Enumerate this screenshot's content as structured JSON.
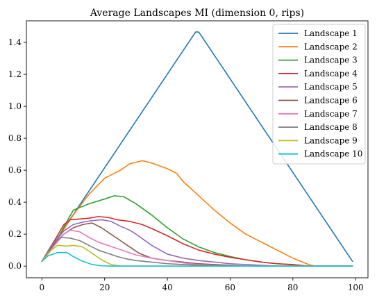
{
  "chart_data": {
    "type": "line",
    "title": "Average Landscapes MI (dimension 0, rips)",
    "xlabel": "",
    "ylabel": "",
    "xlim": [
      -4.95,
      103.95
    ],
    "ylim": [
      -0.073,
      1.535
    ],
    "xticks": [
      0,
      20,
      40,
      60,
      80,
      100
    ],
    "yticks": [
      0.0,
      0.2,
      0.4,
      0.6,
      0.8,
      1.0,
      1.2,
      1.4
    ],
    "xtick_labels": [
      "0",
      "20",
      "40",
      "60",
      "80",
      "100"
    ],
    "ytick_labels": [
      "0.0",
      "0.2",
      "0.4",
      "0.6",
      "0.8",
      "1.0",
      "1.2",
      "1.4"
    ],
    "grid": false,
    "legend_position": "top-right",
    "series": [
      {
        "name": "Landscape 1",
        "color": "#1f77b4",
        "x": [
          0,
          49,
          50,
          99
        ],
        "y": [
          0.03,
          1.465,
          1.465,
          0.03
        ]
      },
      {
        "name": "Landscape 2",
        "color": "#ff7f0e",
        "x": [
          0,
          5,
          10,
          15,
          20,
          22,
          25,
          28,
          32,
          35,
          40,
          43,
          45,
          50,
          55,
          60,
          65,
          70,
          75,
          80,
          85,
          87,
          90,
          99
        ],
        "y": [
          0.03,
          0.17,
          0.32,
          0.45,
          0.55,
          0.57,
          0.6,
          0.64,
          0.66,
          0.645,
          0.61,
          0.58,
          0.53,
          0.44,
          0.35,
          0.27,
          0.2,
          0.15,
          0.1,
          0.05,
          0.01,
          0.0,
          0.0,
          0.0
        ]
      },
      {
        "name": "Landscape 3",
        "color": "#2ca02c",
        "x": [
          0,
          5,
          8,
          10,
          15,
          20,
          23,
          26,
          30,
          35,
          40,
          45,
          50,
          55,
          60,
          65,
          70,
          75,
          80,
          85,
          90,
          99
        ],
        "y": [
          0.03,
          0.17,
          0.28,
          0.35,
          0.39,
          0.42,
          0.44,
          0.435,
          0.39,
          0.32,
          0.24,
          0.17,
          0.12,
          0.085,
          0.06,
          0.04,
          0.025,
          0.015,
          0.008,
          0.0,
          0.0,
          0.0
        ]
      },
      {
        "name": "Landscape 4",
        "color": "#d62728",
        "x": [
          0,
          4,
          7,
          9,
          12,
          15,
          18,
          21,
          24,
          28,
          32,
          35,
          40,
          45,
          50,
          55,
          60,
          65,
          70,
          75,
          80,
          85,
          90,
          99
        ],
        "y": [
          0.03,
          0.16,
          0.26,
          0.29,
          0.295,
          0.3,
          0.31,
          0.305,
          0.29,
          0.28,
          0.26,
          0.235,
          0.19,
          0.14,
          0.1,
          0.075,
          0.055,
          0.04,
          0.025,
          0.015,
          0.01,
          0.0,
          0.0,
          0.0
        ]
      },
      {
        "name": "Landscape 5",
        "color": "#9467bd",
        "x": [
          0,
          4,
          7,
          10,
          13,
          16,
          19,
          22,
          25,
          28,
          30,
          35,
          40,
          45,
          50,
          55,
          60,
          65,
          70,
          75,
          80,
          90,
          99
        ],
        "y": [
          0.03,
          0.15,
          0.22,
          0.26,
          0.275,
          0.285,
          0.29,
          0.28,
          0.25,
          0.225,
          0.2,
          0.13,
          0.075,
          0.05,
          0.035,
          0.025,
          0.015,
          0.01,
          0.005,
          0.0,
          0.0,
          0.0,
          0.0
        ]
      },
      {
        "name": "Landscape 6",
        "color": "#8c564b",
        "x": [
          0,
          4,
          7,
          10,
          13,
          16,
          19,
          22,
          25,
          28,
          31,
          35,
          40,
          45,
          50,
          55,
          60,
          65,
          70,
          80,
          90,
          99
        ],
        "y": [
          0.03,
          0.14,
          0.2,
          0.24,
          0.26,
          0.27,
          0.24,
          0.2,
          0.16,
          0.12,
          0.08,
          0.05,
          0.035,
          0.025,
          0.015,
          0.01,
          0.005,
          0.0,
          0.0,
          0.0,
          0.0,
          0.0
        ]
      },
      {
        "name": "Landscape 7",
        "color": "#e377c2",
        "x": [
          0,
          4,
          7,
          9,
          12,
          15,
          18,
          21,
          24,
          27,
          30,
          35,
          40,
          45,
          50,
          55,
          60,
          70,
          80,
          90,
          99
        ],
        "y": [
          0.03,
          0.13,
          0.2,
          0.225,
          0.215,
          0.18,
          0.15,
          0.13,
          0.11,
          0.09,
          0.07,
          0.05,
          0.035,
          0.02,
          0.01,
          0.005,
          0.0,
          0.0,
          0.0,
          0.0,
          0.0
        ]
      },
      {
        "name": "Landscape 8",
        "color": "#7f7f7f",
        "x": [
          0,
          3,
          6,
          9,
          12,
          15,
          18,
          21,
          24,
          27,
          30,
          35,
          40,
          45,
          50,
          60,
          70,
          80,
          90,
          99
        ],
        "y": [
          0.03,
          0.13,
          0.18,
          0.175,
          0.16,
          0.13,
          0.1,
          0.08,
          0.06,
          0.045,
          0.035,
          0.025,
          0.015,
          0.01,
          0.005,
          0.0,
          0.0,
          0.0,
          0.0,
          0.0
        ]
      },
      {
        "name": "Landscape 9",
        "color": "#bcbd22",
        "x": [
          0,
          3,
          5,
          8,
          10,
          13,
          16,
          19,
          22,
          25,
          28,
          35,
          50,
          70,
          99
        ],
        "y": [
          0.03,
          0.1,
          0.13,
          0.125,
          0.13,
          0.12,
          0.08,
          0.04,
          0.01,
          0.0,
          0.0,
          0.0,
          0.0,
          0.0,
          0.0
        ]
      },
      {
        "name": "Landscape 10",
        "color": "#17becf",
        "x": [
          0,
          2,
          5,
          8,
          10,
          13,
          16,
          19,
          22,
          25,
          30,
          50,
          70,
          99
        ],
        "y": [
          0.03,
          0.065,
          0.085,
          0.085,
          0.06,
          0.03,
          0.01,
          0.002,
          0.0,
          0.0,
          0.0,
          0.0,
          0.0,
          0.0
        ]
      }
    ]
  }
}
